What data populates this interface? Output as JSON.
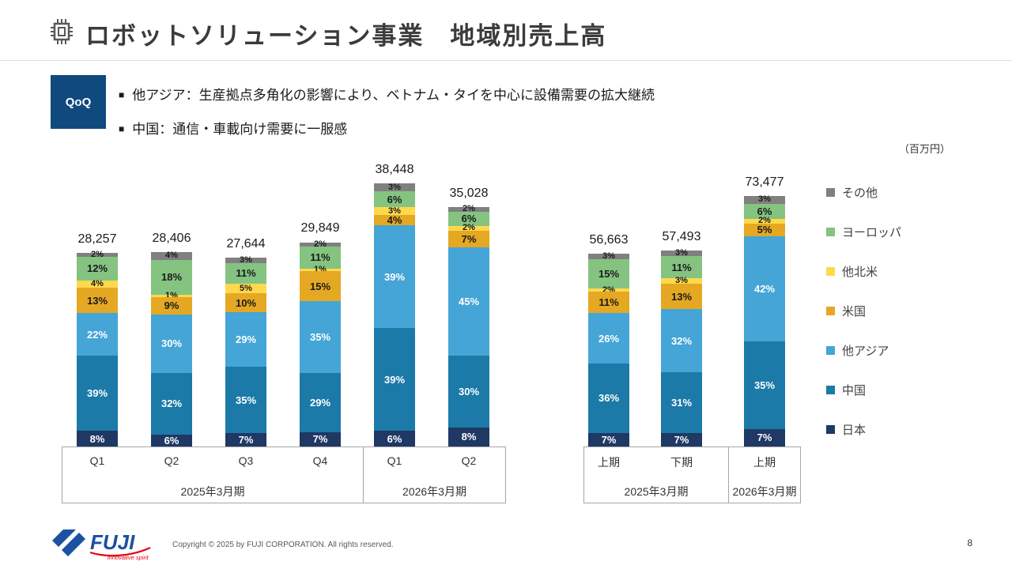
{
  "page": {
    "title": "ロボットソリューション事業　地域別売上高",
    "unit_label": "（百万円）",
    "page_number": "8",
    "copyright": "Copyright © 2025 by FUJI CORPORATION. All rights reserved."
  },
  "callout": {
    "badge": "QoQ",
    "bullets": [
      "他アジア：生産拠点多角化の影響により、ベトナム・タイを中心に設備需要の拡大継続",
      "中国：通信・車載向け需要に一服感"
    ]
  },
  "logo": {
    "name": "FUJI",
    "tagline": "innovative spirit"
  },
  "legend": [
    {
      "key": "others",
      "label": "その他",
      "color": "#808080"
    },
    {
      "key": "europe",
      "label": "ヨーロッパ",
      "color": "#84c380"
    },
    {
      "key": "other-north-america",
      "label": "他北米",
      "color": "#ffd94d"
    },
    {
      "key": "us",
      "label": "米国",
      "color": "#e5a823"
    },
    {
      "key": "other-asia",
      "label": "他アジア",
      "color": "#45a5d6"
    },
    {
      "key": "china",
      "label": "中国",
      "color": "#1b7aa8"
    },
    {
      "key": "japan",
      "label": "日本",
      "color": "#1f3864"
    }
  ],
  "chart_data": {
    "type": "bar",
    "stacked": true,
    "unit": "百万円",
    "value_labels": "percent-of-total",
    "legend_position": "right",
    "series_order_bottom_to_top": [
      "日本",
      "中国",
      "他アジア",
      "米国",
      "他北米",
      "ヨーロッパ",
      "その他"
    ],
    "series_keys": {
      "日本": "japan",
      "中国": "china",
      "他アジア": "other-asia",
      "米国": "us",
      "他北米": "other-north-america",
      "ヨーロッパ": "europe",
      "その他": "others"
    },
    "colors": {
      "日本": "#1f3864",
      "中国": "#1b7aa8",
      "他アジア": "#45a5d6",
      "米国": "#e5a823",
      "他北米": "#ffd94d",
      "ヨーロッパ": "#84c380",
      "その他": "#808080"
    },
    "white_label_series": [
      "日本",
      "中国",
      "他アジア"
    ],
    "groups": [
      {
        "name": "quarterly",
        "period_labels": [
          "2025年3月期",
          "2026年3月期"
        ],
        "bars": [
          {
            "label": "Q1",
            "period": "2025年3月期",
            "total": 28257,
            "total_label": "28,257",
            "pct": {
              "日本": 8,
              "中国": 39,
              "他アジア": 22,
              "米国": 13,
              "他北米": 4,
              "ヨーロッパ": 12,
              "その他": 2
            }
          },
          {
            "label": "Q2",
            "period": "2025年3月期",
            "total": 28406,
            "total_label": "28,406",
            "pct": {
              "日本": 6,
              "中国": 32,
              "他アジア": 30,
              "米国": 9,
              "他北米": 1,
              "ヨーロッパ": 18,
              "その他": 4
            }
          },
          {
            "label": "Q3",
            "period": "2025年3月期",
            "total": 27644,
            "total_label": "27,644",
            "pct": {
              "日本": 7,
              "中国": 35,
              "他アジア": 29,
              "米国": 10,
              "他北米": 5,
              "ヨーロッパ": 11,
              "その他": 3
            }
          },
          {
            "label": "Q4",
            "period": "2025年3月期",
            "total": 29849,
            "total_label": "29,849",
            "pct": {
              "日本": 7,
              "中国": 29,
              "他アジア": 35,
              "米国": 15,
              "他北米": 1,
              "ヨーロッパ": 11,
              "その他": 2
            }
          },
          {
            "label": "Q1",
            "period": "2026年3月期",
            "total": 38448,
            "total_label": "38,448",
            "pct": {
              "日本": 6,
              "中国": 39,
              "他アジア": 39,
              "米国": 4,
              "他北米": 3,
              "ヨーロッパ": 6,
              "その他": 3
            }
          },
          {
            "label": "Q2",
            "period": "2026年3月期",
            "total": 35028,
            "total_label": "35,028",
            "pct": {
              "日本": 8,
              "中国": 30,
              "他アジア": 45,
              "米国": 7,
              "他北米": 2,
              "ヨーロッパ": 6,
              "その他": 2
            }
          }
        ]
      },
      {
        "name": "half-year",
        "period_labels": [
          "2025年3月期",
          "2026年3月期"
        ],
        "bars": [
          {
            "label": "上期",
            "period": "2025年3月期",
            "total": 56663,
            "total_label": "56,663",
            "pct": {
              "日本": 7,
              "中国": 36,
              "他アジア": 26,
              "米国": 11,
              "他北米": 2,
              "ヨーロッパ": 15,
              "その他": 3
            }
          },
          {
            "label": "下期",
            "period": "2025年3月期",
            "total": 57493,
            "total_label": "57,493",
            "pct": {
              "日本": 7,
              "中国": 31,
              "他アジア": 32,
              "米国": 13,
              "他北米": 3,
              "ヨーロッパ": 11,
              "その他": 3
            }
          },
          {
            "label": "上期",
            "period": "2026年3月期",
            "total": 73477,
            "total_label": "73,477",
            "pct": {
              "日本": 7,
              "中国": 35,
              "他アジア": 42,
              "米国": 5,
              "他北米": 2,
              "ヨーロッパ": 6,
              "その他": 3
            }
          }
        ]
      }
    ]
  }
}
